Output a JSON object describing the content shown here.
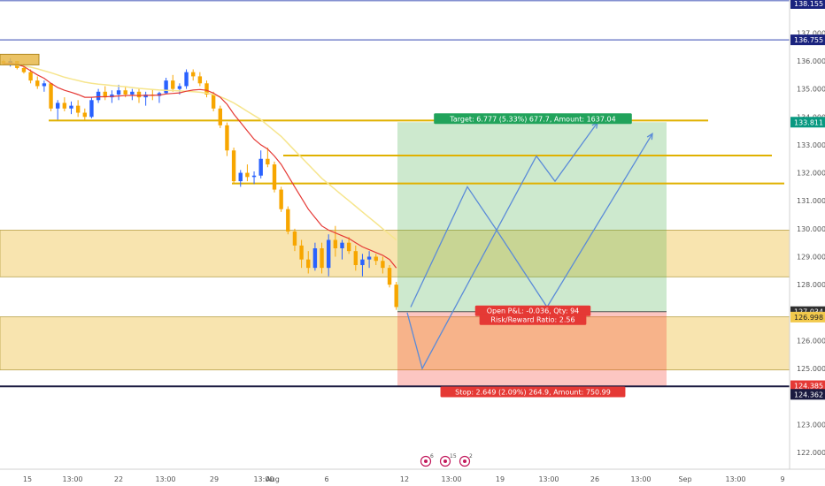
{
  "chart_data": {
    "type": "candlestick",
    "instrument_hint": "",
    "y_axis": {
      "ticks": [
        "137.000",
        "136.000",
        "135.000",
        "134.000",
        "133.000",
        "132.000",
        "131.000",
        "130.000",
        "129.000",
        "128.000",
        "127.000",
        "126.000",
        "125.000",
        "124.000",
        "123.000",
        "122.000"
      ],
      "range": [
        121.6,
        138.2
      ]
    },
    "x_axis": {
      "ticks": [
        "15",
        "13:00",
        "22",
        "13:00",
        "29",
        "13:00",
        "Aug",
        "6",
        "12",
        "13:00",
        "19",
        "13:00",
        "26",
        "13:00",
        "Sep",
        "13:00",
        "9"
      ]
    },
    "price_tags": [
      {
        "label": "138.155",
        "color": "#1a237e",
        "value": 138.155
      },
      {
        "label": "136.755",
        "color": "#1a237e",
        "value": 136.755
      },
      {
        "label": "133.811",
        "color": "#089981",
        "value": 133.811
      },
      {
        "label": "127.034",
        "color": "#2f2f2f",
        "value": 127.034
      },
      {
        "label": "126.998",
        "color": "#f2c94c",
        "value": 126.998
      },
      {
        "label": "124.385",
        "color": "#e53935",
        "value": 124.385
      },
      {
        "label": "124.362",
        "color": "#1a1a40",
        "value": 124.362
      }
    ],
    "horizontal_lines": [
      {
        "value": 138.155,
        "color": "#5c6bc0"
      },
      {
        "value": 136.755,
        "color": "#5c6bc0"
      },
      {
        "value": 124.362,
        "color": "#1a1a40"
      }
    ],
    "zones": [
      {
        "from": 128.28,
        "to": 129.95,
        "color": "#f3d27a"
      },
      {
        "from": 124.95,
        "to": 126.85,
        "color": "#f3d27a"
      }
    ],
    "levels": [
      {
        "value": 133.87,
        "color": "#e0b100"
      },
      {
        "value": 132.62,
        "color": "#e0b100"
      },
      {
        "value": 131.62,
        "color": "#e0b100"
      },
      {
        "value": 133.87,
        "color": "#e0b100"
      }
    ],
    "position": {
      "entry": 127.034,
      "target": 133.811,
      "stop": 124.385,
      "target_label": "Target: 6.777 (5.33%) 677.7, Amount: 1637.04",
      "stop_label": "Stop: 2.649 (2.09%) 264.9, Amount: 750.99",
      "pnl_label": "Open P&L: -0.036, Qty: 94",
      "rr_label": "Risk/Reward Ratio: 2.56"
    },
    "candles": [
      [
        136.0,
        136.05,
        135.85,
        135.9
      ],
      [
        135.9,
        136.1,
        135.8,
        136.0
      ],
      [
        136.0,
        136.0,
        135.7,
        135.75
      ],
      [
        135.75,
        135.9,
        135.55,
        135.6
      ],
      [
        135.6,
        135.7,
        135.2,
        135.3
      ],
      [
        135.3,
        135.45,
        135.0,
        135.1
      ],
      [
        135.1,
        135.3,
        134.9,
        135.2
      ],
      [
        135.2,
        135.2,
        134.2,
        134.3
      ],
      [
        134.3,
        134.6,
        133.9,
        134.5
      ],
      [
        134.5,
        134.7,
        134.2,
        134.3
      ],
      [
        134.3,
        134.55,
        134.1,
        134.4
      ],
      [
        134.4,
        134.6,
        134.0,
        134.15
      ],
      [
        134.15,
        134.3,
        133.9,
        134.0
      ],
      [
        134.0,
        134.7,
        133.95,
        134.6
      ],
      [
        134.6,
        135.0,
        134.5,
        134.9
      ],
      [
        134.9,
        135.1,
        134.6,
        134.7
      ],
      [
        134.7,
        134.95,
        134.5,
        134.8
      ],
      [
        134.8,
        135.15,
        134.6,
        134.95
      ],
      [
        134.95,
        135.1,
        134.7,
        134.8
      ],
      [
        134.8,
        135.0,
        134.6,
        134.9
      ],
      [
        134.9,
        135.0,
        134.5,
        134.7
      ],
      [
        134.7,
        134.9,
        134.4,
        134.8
      ],
      [
        134.8,
        135.0,
        134.6,
        134.75
      ],
      [
        134.75,
        134.9,
        134.5,
        134.85
      ],
      [
        134.85,
        135.4,
        134.8,
        135.3
      ],
      [
        135.3,
        135.5,
        134.9,
        135.0
      ],
      [
        135.0,
        135.2,
        134.8,
        135.1
      ],
      [
        135.1,
        135.7,
        135.0,
        135.6
      ],
      [
        135.6,
        135.7,
        135.3,
        135.45
      ],
      [
        135.45,
        135.6,
        135.1,
        135.2
      ],
      [
        135.2,
        135.3,
        134.7,
        134.8
      ],
      [
        134.8,
        134.9,
        134.2,
        134.3
      ],
      [
        134.3,
        134.4,
        133.6,
        133.7
      ],
      [
        133.7,
        133.8,
        132.6,
        132.8
      ],
      [
        132.8,
        132.9,
        131.6,
        131.7
      ],
      [
        131.7,
        132.1,
        131.5,
        132.0
      ],
      [
        132.0,
        132.3,
        131.7,
        131.85
      ],
      [
        131.85,
        132.05,
        131.6,
        131.9
      ],
      [
        131.9,
        132.8,
        131.8,
        132.5
      ],
      [
        132.5,
        132.9,
        132.2,
        132.3
      ],
      [
        132.3,
        132.4,
        131.3,
        131.4
      ],
      [
        131.4,
        131.5,
        130.6,
        130.7
      ],
      [
        130.7,
        130.8,
        129.8,
        129.9
      ],
      [
        129.9,
        130.0,
        129.2,
        129.4
      ],
      [
        129.4,
        129.6,
        128.6,
        128.9
      ],
      [
        128.9,
        129.2,
        128.4,
        128.6
      ],
      [
        128.6,
        129.5,
        128.5,
        129.3
      ],
      [
        129.3,
        129.5,
        128.4,
        128.6
      ],
      [
        128.6,
        129.8,
        128.3,
        129.6
      ],
      [
        129.6,
        130.1,
        129.0,
        129.3
      ],
      [
        129.3,
        129.6,
        128.9,
        129.5
      ],
      [
        129.5,
        129.7,
        129.1,
        129.2
      ],
      [
        129.2,
        129.4,
        128.5,
        128.7
      ],
      [
        128.7,
        129.1,
        128.3,
        128.9
      ],
      [
        128.9,
        129.2,
        128.6,
        129.0
      ],
      [
        129.0,
        129.1,
        128.7,
        128.85
      ],
      [
        128.85,
        129.0,
        128.4,
        128.6
      ],
      [
        128.6,
        128.7,
        127.9,
        128.0
      ],
      [
        128.0,
        128.1,
        127.1,
        127.2
      ]
    ],
    "ema_red": [
      135.9,
      135.92,
      135.88,
      135.8,
      135.65,
      135.5,
      135.38,
      135.2,
      135.05,
      134.95,
      134.88,
      134.8,
      134.7,
      134.7,
      134.72,
      134.72,
      134.73,
      134.75,
      134.76,
      134.77,
      134.76,
      134.77,
      134.77,
      134.78,
      134.82,
      134.84,
      134.86,
      134.92,
      134.96,
      134.98,
      134.95,
      134.85,
      134.7,
      134.45,
      134.1,
      133.8,
      133.5,
      133.2,
      133.0,
      132.85,
      132.6,
      132.3,
      131.9,
      131.5,
      131.1,
      130.7,
      130.4,
      130.1,
      129.95,
      129.85,
      129.75,
      129.65,
      129.5,
      129.35,
      129.25,
      129.15,
      129.05,
      128.9,
      128.6
    ],
    "sma_yellow": [
      135.9,
      135.88,
      135.85,
      135.82,
      135.78,
      135.72,
      135.65,
      135.58,
      135.5,
      135.42,
      135.36,
      135.3,
      135.24,
      135.2,
      135.17,
      135.15,
      135.12,
      135.1,
      135.08,
      135.05,
      135.02,
      135.0,
      134.98,
      134.96,
      134.95,
      134.94,
      134.93,
      134.92,
      134.9,
      134.88,
      134.85,
      134.8,
      134.72,
      134.62,
      134.5,
      134.35,
      134.2,
      134.05,
      133.9,
      133.7,
      133.5,
      133.3,
      133.05,
      132.8,
      132.55,
      132.3,
      132.05,
      131.8,
      131.6,
      131.4,
      131.2,
      131.0,
      130.8,
      130.6,
      130.4,
      130.2,
      130.0,
      129.8,
      129.6
    ],
    "projection_path_1": [
      [
        127.0,
        460
      ],
      [
        125.0,
        477
      ],
      [
        132.6,
        606
      ],
      [
        131.7,
        627
      ],
      [
        133.8,
        675
      ]
    ],
    "projection_path_2": [
      [
        127.2,
        464
      ],
      [
        131.5,
        528
      ],
      [
        130.0,
        560
      ],
      [
        127.2,
        618
      ],
      [
        133.4,
        737
      ]
    ],
    "toolbar_badges": [
      "6",
      "15",
      "2"
    ]
  }
}
